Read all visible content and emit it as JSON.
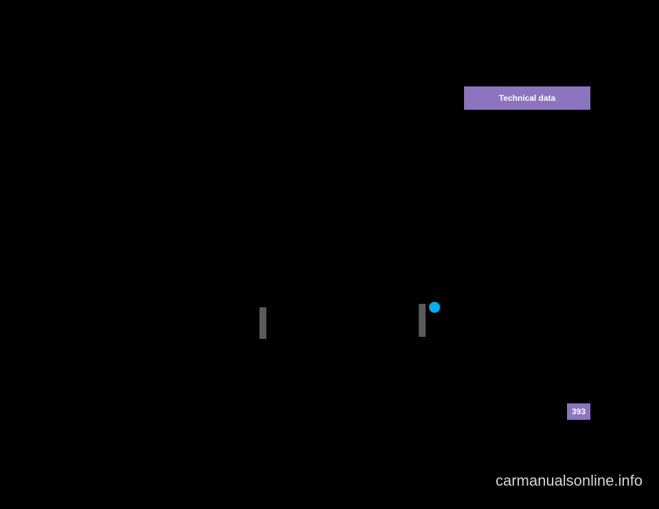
{
  "header": {
    "title": "Technical data"
  },
  "pageNumber": "393",
  "watermark": "carmanualsonline.info",
  "visual": {
    "background_color": "#000000",
    "tab_color": "#8d74be",
    "tab_text_color": "#ffffff",
    "tab_fontsize": 12,
    "page_number_box_color": "#8d74be",
    "page_number_text_color": "#ffffff",
    "page_number_fontsize": 12,
    "gray_bar_color": "#5a5a5a",
    "cyan_circle_color": "#00aeef",
    "watermark_color": "#d5d5d5",
    "watermark_fontsize": 22
  }
}
